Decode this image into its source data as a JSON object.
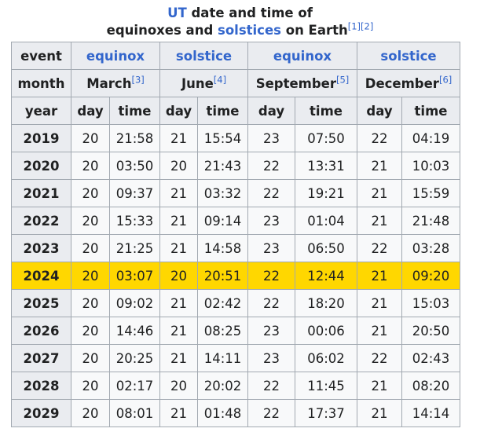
{
  "caption": {
    "link1": "UT",
    "text1": " date and time of",
    "text2": "equinoxes and ",
    "link2": "solstices",
    "text3": " on Earth",
    "ref1": "[1]",
    "ref2": "[2]"
  },
  "header": {
    "event_label": "event",
    "events": [
      "equinox",
      "solstice",
      "equinox",
      "solstice"
    ],
    "month_label": "month",
    "months": [
      {
        "name": "March",
        "ref": "[3]"
      },
      {
        "name": "June",
        "ref": "[4]"
      },
      {
        "name": "September",
        "ref": "[5]"
      },
      {
        "name": "December",
        "ref": "[6]"
      }
    ],
    "year_label": "year",
    "day_label": "day",
    "time_label": "time"
  },
  "highlight_year": "2024",
  "highlight_color": "#ffd700",
  "rows": [
    {
      "year": "2019",
      "cells": [
        "20",
        "21:58",
        "21",
        "15:54",
        "23",
        "07:50",
        "22",
        "04:19"
      ]
    },
    {
      "year": "2020",
      "cells": [
        "20",
        "03:50",
        "20",
        "21:43",
        "22",
        "13:31",
        "21",
        "10:03"
      ]
    },
    {
      "year": "2021",
      "cells": [
        "20",
        "09:37",
        "21",
        "03:32",
        "22",
        "19:21",
        "21",
        "15:59"
      ]
    },
    {
      "year": "2022",
      "cells": [
        "20",
        "15:33",
        "21",
        "09:14",
        "23",
        "01:04",
        "21",
        "21:48"
      ]
    },
    {
      "year": "2023",
      "cells": [
        "20",
        "21:25",
        "21",
        "14:58",
        "23",
        "06:50",
        "22",
        "03:28"
      ]
    },
    {
      "year": "2024",
      "cells": [
        "20",
        "03:07",
        "20",
        "20:51",
        "22",
        "12:44",
        "21",
        "09:20"
      ]
    },
    {
      "year": "2025",
      "cells": [
        "20",
        "09:02",
        "21",
        "02:42",
        "22",
        "18:20",
        "21",
        "15:03"
      ]
    },
    {
      "year": "2026",
      "cells": [
        "20",
        "14:46",
        "21",
        "08:25",
        "23",
        "00:06",
        "21",
        "20:50"
      ]
    },
    {
      "year": "2027",
      "cells": [
        "20",
        "20:25",
        "21",
        "14:11",
        "23",
        "06:02",
        "22",
        "02:43"
      ]
    },
    {
      "year": "2028",
      "cells": [
        "20",
        "02:17",
        "20",
        "20:02",
        "22",
        "11:45",
        "21",
        "08:20"
      ]
    },
    {
      "year": "2029",
      "cells": [
        "20",
        "08:01",
        "21",
        "01:48",
        "22",
        "17:37",
        "21",
        "14:14"
      ]
    }
  ]
}
